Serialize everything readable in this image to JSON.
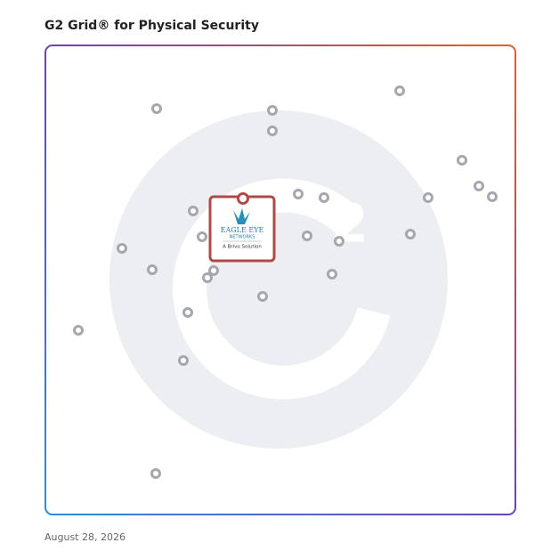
{
  "header": {
    "title": "G2 Grid® for Physical Security"
  },
  "logo": {
    "name": "EAGLE EYE",
    "subname": "NETWORKS",
    "tagline": "A Brivo Solution"
  },
  "footer": {
    "date": "August 28, 2026"
  }
}
